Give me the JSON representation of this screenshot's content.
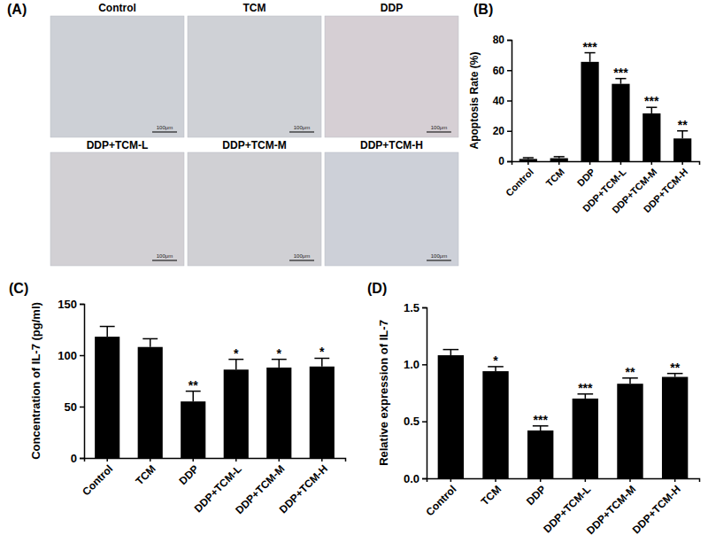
{
  "chart_data": [
    {
      "type": "image_grid",
      "title": "(A)",
      "labels": [
        "Control",
        "TCM",
        "DDP",
        "DDP+TCM-L",
        "DDP+TCM-M",
        "DDP+TCM-H"
      ],
      "scale_bar": "100μm"
    },
    {
      "type": "bar",
      "title": "(B)",
      "y_label": "Apoptosis Rate (%)",
      "categories": [
        "Control",
        "TCM",
        "DDP",
        "DDP+TCM-L",
        "DDP+TCM-M",
        "DDP+TCM-H"
      ],
      "values": [
        1.5,
        2,
        65.5,
        51,
        31.5,
        15
      ],
      "errors": [
        0.8,
        1,
        6,
        3.5,
        4,
        5
      ],
      "significance": [
        null,
        null,
        "***",
        "***",
        "***",
        "**"
      ],
      "color": "#000000",
      "ylim": [
        0,
        80
      ],
      "yticks": [
        0,
        20,
        40,
        60,
        80
      ],
      "grid": false
    },
    {
      "type": "bar",
      "title": "(C)",
      "y_label": "Concentration of IL-7 (pg/ml)",
      "categories": [
        "Control",
        "TCM",
        "DDP",
        "DDP+TCM-L",
        "DDP+TCM-M",
        "DDP+TCM-H"
      ],
      "values": [
        118,
        108,
        55,
        86,
        88,
        89
      ],
      "errors": [
        10,
        8,
        10,
        10,
        8,
        8
      ],
      "significance": [
        null,
        null,
        "**",
        "*",
        "*",
        "*"
      ],
      "color": "#000000",
      "ylim": [
        0,
        150
      ],
      "yticks": [
        0,
        50,
        100,
        150
      ],
      "grid": false
    },
    {
      "type": "bar",
      "title": "(D)",
      "y_label": "Relative expression of IL-7",
      "categories": [
        "Control",
        "TCM",
        "DDP",
        "DDP+TCM-L",
        "DDP+TCM-M",
        "DDP+TCM-H"
      ],
      "values": [
        1.08,
        0.94,
        0.42,
        0.7,
        0.83,
        0.89
      ],
      "errors": [
        0.05,
        0.04,
        0.04,
        0.04,
        0.05,
        0.03
      ],
      "significance": [
        null,
        "*",
        "***",
        "***",
        "**",
        "**"
      ],
      "color": "#000000",
      "ylim": [
        0,
        1.5
      ],
      "yticks": [
        {
          "value": 0,
          "label": "0.0"
        },
        {
          "value": 0.5,
          "label": "0.5"
        },
        {
          "value": 1,
          "label": "1.0"
        },
        {
          "value": 1.5,
          "label": "1.5"
        }
      ],
      "grid": false
    }
  ]
}
